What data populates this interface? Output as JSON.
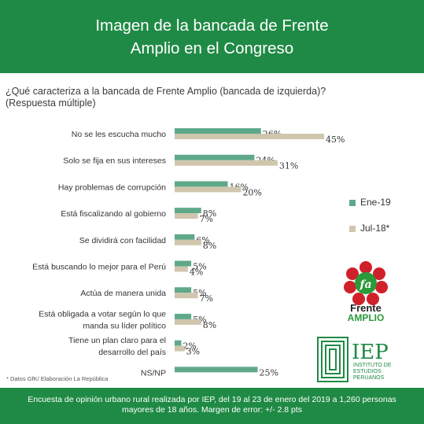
{
  "header": {
    "title_line1": "Imagen de la bancada de Frente",
    "title_line2": "Amplio en el Congreso"
  },
  "question": {
    "line1": "¿Qué caracteriza a la bancada de Frente Amplio (bancada de izquierda)?",
    "line2": "(Respuesta múltiple)"
  },
  "chart_data": {
    "type": "bar",
    "orientation": "horizontal",
    "categories": [
      [
        "No se les escucha mucho"
      ],
      [
        "Solo se fija en sus intereses"
      ],
      [
        "Hay problemas de corrupción"
      ],
      [
        "Está fiscalizando al gobierno"
      ],
      [
        "Se dividirá con facilidad"
      ],
      [
        "Está buscando lo mejor para el Perú"
      ],
      [
        "Actúa de manera unida"
      ],
      [
        "Está obligada a votar según lo que",
        "manda su líder político"
      ],
      [
        "Tiene un plan claro para el",
        "desarrollo del país"
      ],
      [
        "NS/NP"
      ]
    ],
    "series": [
      {
        "name": "Ene-19",
        "color": "#5fa98a",
        "values": [
          26,
          24,
          16,
          8,
          6,
          5,
          5,
          5,
          2,
          25
        ],
        "labels": [
          "26%",
          "24%",
          "16%",
          "8%",
          "6%",
          "5%",
          "5%",
          "5%",
          "2%",
          "25%"
        ]
      },
      {
        "name": "Jul-18*",
        "color": "#cfc6ad",
        "values": [
          45,
          31,
          20,
          7,
          8,
          4,
          7,
          8,
          3,
          null
        ],
        "labels": [
          "45%",
          "31%",
          "20%",
          "7%",
          "8%",
          "4%",
          "7%",
          "8%",
          "3%",
          ""
        ]
      }
    ],
    "xlim": [
      0,
      45
    ],
    "grid": false,
    "legend_position": "right"
  },
  "note": "* Datos GfK/ Elaboración La República",
  "footer": {
    "line1": "Encuesta de opinión urbano rural realizada por IEP, del 19 al 23 de enero del 2019 a 1,260 personas",
    "line2": "mayores de 18 años. Margen de error: +/- 2.8 pts"
  },
  "logos": {
    "frente_amplio": {
      "fa": "fa",
      "word1": "Frente",
      "word2": "AMPLIO"
    },
    "iep": {
      "abbr": "IEP",
      "line1": "INSTITUTO DE",
      "line2": "ESTUDIOS",
      "line3": "PERUANOS"
    }
  }
}
